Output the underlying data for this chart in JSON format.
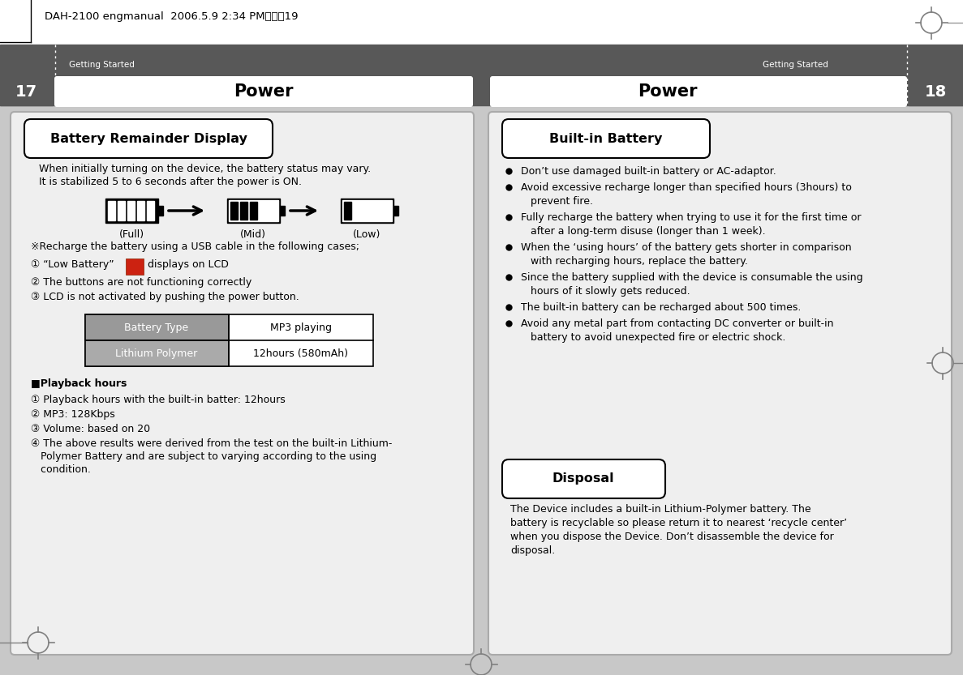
{
  "bg_color": "#ffffff",
  "dark_header_color": "#585858",
  "header_top_text": "DAH-2100 engmanual  2006.5.9 2:34 PM페이직19",
  "left_page_num": "17",
  "right_page_num": "18",
  "section_label": "Getting Started",
  "left_title": "Power",
  "right_title": "Power",
  "left_box_title": "Battery Remainder Display",
  "left_intro_line1": "When initially turning on the device, the battery status may vary.",
  "left_intro_line2": "It is stabilized 5 to 6 seconds after the power is ON.",
  "battery_labels": [
    "(Full)",
    "(Mid)",
    "(Low)"
  ],
  "recharge_text": "※Recharge the battery using a USB cable in the following cases;",
  "list_item1_pre": "① “Low Battery”",
  "list_item1_post": "displays on LCD",
  "list_item2": "② The buttons are not functioning correctly",
  "list_item3": "③ LCD is not activated by pushing the power button.",
  "table_headers": [
    "Battery Type",
    "MP3 playing"
  ],
  "table_row": [
    "Lithium Polymer",
    "12hours (580mAh)"
  ],
  "playback_title": "■Playback hours",
  "pb1": "① Playback hours with the built-in batter: 12hours",
  "pb2": "② MP3: 128Kbps",
  "pb3": "③ Volume: based on 20",
  "pb4a": "④ The above results were derived from the test on the built-in Lithium-",
  "pb4b": "   Polymer Battery and are subject to varying according to the using",
  "pb4c": "   condition.",
  "right_box_title": "Built-in Battery",
  "bi1": "Don’t use damaged built-in battery or AC-adaptor.",
  "bi2a": "Avoid excessive recharge longer than specified hours (3hours) to",
  "bi2b": "   prevent fire.",
  "bi3a": "Fully recharge the battery when trying to use it for the first time or",
  "bi3b": "   after a long-term disuse (longer than 1 week).",
  "bi4a": "When the ‘using hours’ of the battery gets shorter in comparison",
  "bi4b": "   with recharging hours, replace the battery.",
  "bi5a": "Since the battery supplied with the device is consumable the using",
  "bi5b": "   hours of it slowly gets reduced.",
  "bi6": "The built-in battery can be recharged about 500 times.",
  "bi7a": "Avoid any metal part from contacting DC converter or built-in",
  "bi7b": "   battery to avoid unexpected fire or electric shock.",
  "disposal_title": "Disposal",
  "disp1": "The Device includes a built-in Lithium-Polymer battery. The",
  "disp2": "battery is recyclable so please return it to nearest ‘recycle center’",
  "disp3": "when you dispose the Device. Don’t disassemble the device for",
  "disp4": "disposal.",
  "table_hdr_bg": "#999999",
  "table_row_bg": "#aaaaaa",
  "content_bg": "#c8c8c8",
  "box_bg": "#efefef",
  "box_border": "#888888"
}
